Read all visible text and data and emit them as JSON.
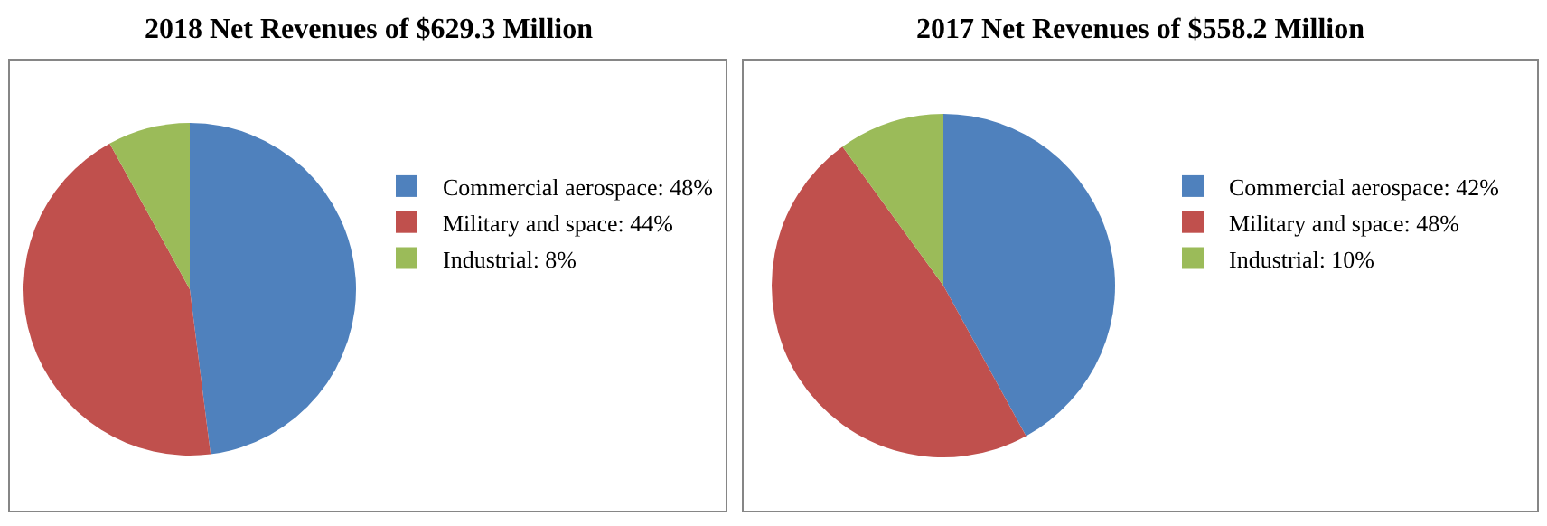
{
  "chart_data": [
    {
      "type": "pie",
      "title": "2018 Net Revenues of $629.3 Million",
      "categories": [
        "Commercial aerospace: 48%",
        "Military and space: 44%",
        "Industrial: 8%"
      ],
      "values": [
        48,
        44,
        8
      ],
      "colors": [
        "#4f81bd",
        "#c0504d",
        "#9bbb59"
      ],
      "legend": "right"
    },
    {
      "type": "pie",
      "title": "2017 Net Revenues of $558.2 Million",
      "categories": [
        "Commercial aerospace: 42%",
        "Military and space: 48%",
        "Industrial: 10%"
      ],
      "values": [
        42,
        48,
        10
      ],
      "colors": [
        "#4f81bd",
        "#c0504d",
        "#9bbb59"
      ],
      "legend": "right"
    }
  ]
}
